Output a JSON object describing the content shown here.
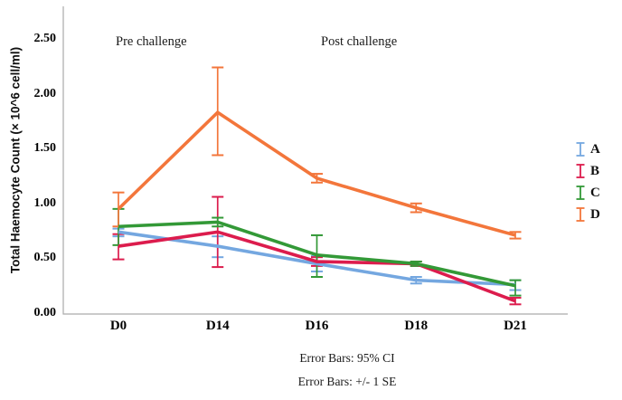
{
  "chart_data": {
    "type": "line",
    "categories": [
      "D0",
      "D14",
      "D16",
      "D18",
      "D21"
    ],
    "series": [
      {
        "name": "A",
        "color": "#74A7E0",
        "values": [
          0.74,
          0.61,
          0.45,
          0.3,
          0.26
        ],
        "err_low": [
          0.7,
          0.51,
          0.38,
          0.27,
          0.21
        ],
        "err_high": [
          0.77,
          0.7,
          0.52,
          0.33,
          0.3
        ]
      },
      {
        "name": "B",
        "color": "#DC1C4D",
        "values": [
          0.61,
          0.74,
          0.47,
          0.45,
          0.11
        ],
        "err_low": [
          0.49,
          0.42,
          0.43,
          0.43,
          0.08
        ],
        "err_high": [
          0.72,
          1.06,
          0.51,
          0.47,
          0.14
        ]
      },
      {
        "name": "C",
        "color": "#339937",
        "values": [
          0.79,
          0.83,
          0.53,
          0.45,
          0.25
        ],
        "err_low": [
          0.62,
          0.79,
          0.33,
          0.43,
          0.16
        ],
        "err_high": [
          0.95,
          0.87,
          0.71,
          0.47,
          0.3
        ]
      },
      {
        "name": "D",
        "color": "#F3763B",
        "values": [
          0.95,
          1.83,
          1.23,
          0.96,
          0.71
        ],
        "err_low": [
          0.79,
          1.44,
          1.19,
          0.92,
          0.68
        ],
        "err_high": [
          1.1,
          2.24,
          1.27,
          1.0,
          0.74
        ]
      }
    ],
    "title": "",
    "xlabel": "",
    "ylabel": "Total Haemocyte Count (× 10^6 cell/ml)",
    "yticks": [
      "0.00",
      "0.50",
      "1.00",
      "1.50",
      "2.00",
      "2.50"
    ],
    "ytick_values": [
      0.0,
      0.5,
      1.0,
      1.5,
      2.0,
      2.5
    ],
    "ylim": [
      0.0,
      2.78
    ],
    "grid": "off",
    "legend_position": "right",
    "axis_color": "#ABABAB",
    "annotations": [
      {
        "text": "Pre challenge"
      },
      {
        "text": "Post challenge"
      }
    ],
    "footnotes": [
      "Error Bars: 95% CI",
      "Error Bars: +/- 1 SE"
    ]
  }
}
